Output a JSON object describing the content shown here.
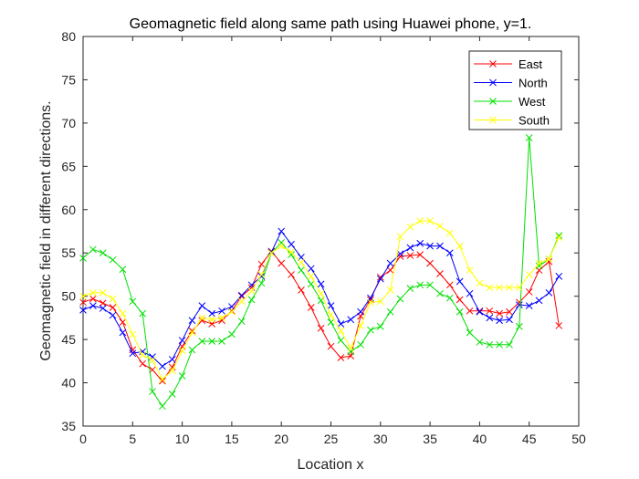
{
  "chart_data": {
    "type": "line",
    "title": "Geomagnetic field along same path using Huawei phone, y=1.",
    "xlabel": "Location x",
    "ylabel": "Geomagnetic field in different directions.",
    "xlim": [
      0,
      50
    ],
    "ylim": [
      35,
      80
    ],
    "xticks": [
      0,
      5,
      10,
      15,
      20,
      25,
      30,
      35,
      40,
      45,
      50
    ],
    "yticks": [
      35,
      40,
      45,
      50,
      55,
      60,
      65,
      70,
      75,
      80
    ],
    "grid": false,
    "legend_location": "top-right",
    "marker": "x",
    "x": [
      0,
      1,
      2,
      3,
      4,
      5,
      6,
      7,
      8,
      9,
      10,
      11,
      12,
      13,
      14,
      15,
      16,
      17,
      18,
      19,
      20,
      21,
      22,
      23,
      24,
      25,
      26,
      27,
      28,
      29,
      30,
      31,
      32,
      33,
      34,
      35,
      36,
      37,
      38,
      39,
      40,
      41,
      42,
      43,
      44,
      45,
      46,
      47,
      48
    ],
    "series": [
      {
        "name": "East",
        "color": "#ff0000",
        "values": [
          49.3,
          49.7,
          49.2,
          48.7,
          47.0,
          43.8,
          42.2,
          41.5,
          40.2,
          41.8,
          44.2,
          46.0,
          47.2,
          46.8,
          47.2,
          48.3,
          50.0,
          51.0,
          53.7,
          55.2,
          53.8,
          52.5,
          50.7,
          48.7,
          46.3,
          44.2,
          42.9,
          43.1,
          47.7,
          49.6,
          52.2,
          53.0,
          54.6,
          54.7,
          54.8,
          53.8,
          52.6,
          51.3,
          49.6,
          48.3,
          48.3,
          48.3,
          48.0,
          48.2,
          49.3,
          50.5,
          53.0,
          54.0,
          46.6
        ]
      },
      {
        "name": "North",
        "color": "#0000ff",
        "values": [
          48.4,
          48.9,
          48.6,
          47.8,
          45.8,
          43.4,
          43.6,
          43.0,
          41.9,
          42.7,
          44.9,
          47.2,
          48.9,
          48.0,
          48.3,
          48.8,
          50.1,
          51.3,
          52.3,
          55.1,
          57.5,
          56.0,
          54.5,
          53.2,
          51.4,
          48.9,
          46.8,
          47.3,
          48.2,
          49.8,
          52.0,
          53.8,
          54.9,
          55.6,
          56.1,
          55.8,
          55.8,
          55.0,
          51.7,
          50.3,
          48.2,
          47.5,
          47.2,
          47.3,
          49.0,
          48.9,
          49.5,
          50.4,
          52.3
        ]
      },
      {
        "name": "West",
        "color": "#00e000",
        "values": [
          54.4,
          55.4,
          55.0,
          54.2,
          53.1,
          49.4,
          48.0,
          39.0,
          37.3,
          38.7,
          40.8,
          43.8,
          44.8,
          44.8,
          44.8,
          45.6,
          47.1,
          49.6,
          51.5,
          55.0,
          56.2,
          54.8,
          53.0,
          51.4,
          49.5,
          47.0,
          44.9,
          43.6,
          44.4,
          46.1,
          46.5,
          48.2,
          49.7,
          50.9,
          51.3,
          51.3,
          50.3,
          49.8,
          48.2,
          45.8,
          44.7,
          44.4,
          44.4,
          44.4,
          46.5,
          68.3,
          53.5,
          54.3,
          57.0
        ]
      },
      {
        "name": "South",
        "color": "#ffff00",
        "values": [
          50.0,
          50.4,
          50.4,
          49.7,
          48.0,
          45.6,
          43.2,
          42.6,
          40.4,
          41.4,
          43.7,
          45.8,
          47.5,
          47.3,
          47.5,
          48.2,
          49.4,
          50.6,
          52.5,
          55.0,
          55.8,
          55.1,
          53.9,
          52.3,
          50.3,
          47.8,
          46.0,
          44.0,
          46.6,
          49.3,
          49.4,
          50.7,
          56.9,
          58.0,
          58.7,
          58.7,
          58.1,
          57.3,
          55.8,
          53.0,
          51.5,
          51.0,
          51.0,
          51.0,
          51.0,
          52.5,
          53.8,
          54.3,
          56.8
        ]
      }
    ]
  }
}
